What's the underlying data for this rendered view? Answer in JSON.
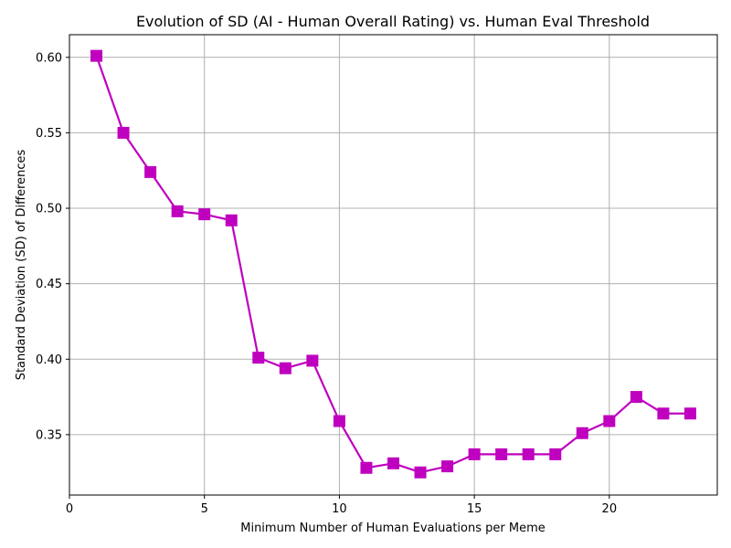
{
  "chart_data": {
    "type": "line",
    "title": "Evolution of SD (AI - Human Overall Rating) vs. Human Eval Threshold",
    "xlabel": "Minimum Number of Human Evaluations per Meme",
    "ylabel": "Standard Deviation (SD) of Differences",
    "xlim": [
      0,
      24
    ],
    "ylim": [
      0.31,
      0.615
    ],
    "x_ticks": [
      0,
      5,
      10,
      15,
      20
    ],
    "x_tick_labels": [
      "0",
      "5",
      "10",
      "15",
      "20"
    ],
    "y_ticks": [
      0.35,
      0.4,
      0.45,
      0.5,
      0.55,
      0.6
    ],
    "y_tick_labels": [
      "0.35",
      "0.40",
      "0.45",
      "0.50",
      "0.55",
      "0.60"
    ],
    "grid": true,
    "line_color": "#bf00bf",
    "marker": "square",
    "series": [
      {
        "x": [
          1,
          2,
          3,
          4,
          5,
          6,
          7,
          8,
          9,
          10,
          11,
          12,
          13,
          14,
          15,
          16,
          17,
          18,
          19,
          20,
          21,
          22,
          23
        ],
        "values": [
          0.601,
          0.55,
          0.524,
          0.498,
          0.496,
          0.492,
          0.401,
          0.394,
          0.399,
          0.359,
          0.328,
          0.331,
          0.325,
          0.329,
          0.337,
          0.337,
          0.337,
          0.337,
          0.351,
          0.359,
          0.375,
          0.364,
          0.364
        ]
      }
    ]
  }
}
